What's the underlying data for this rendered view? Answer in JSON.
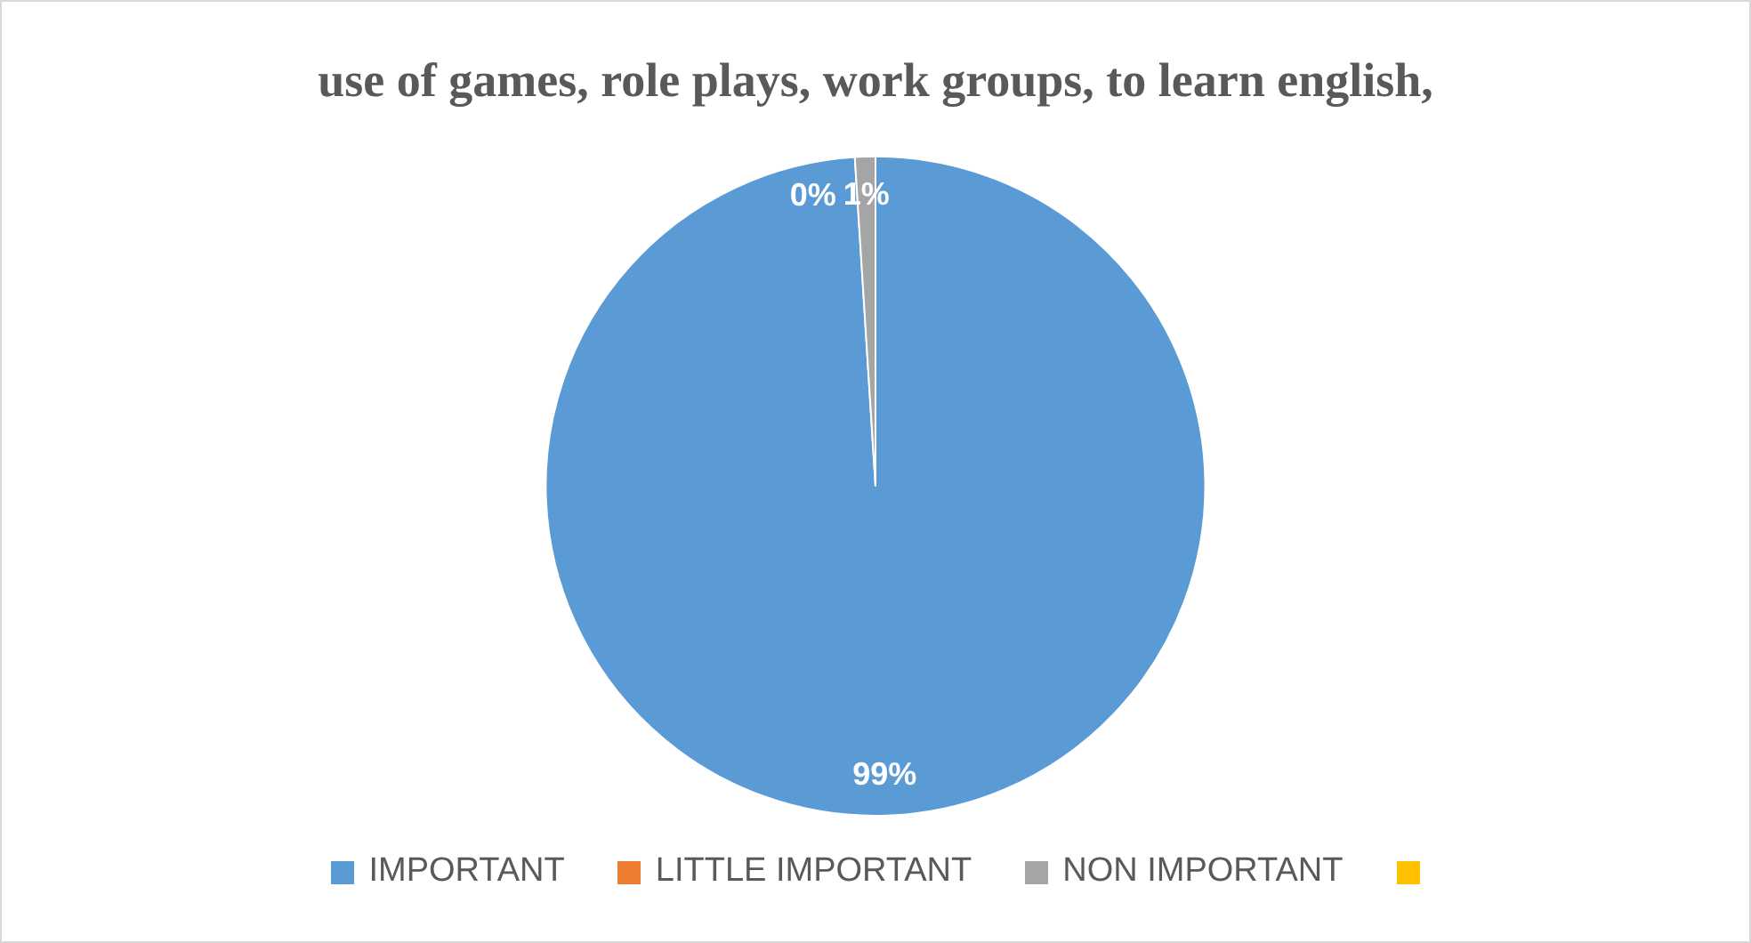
{
  "chart_data": {
    "type": "pie",
    "title": "use of games, role plays, work groups, to learn english,",
    "categories": [
      "IMPORTANT",
      "LITTLE IMPORTANT",
      "NON IMPORTANT",
      null
    ],
    "values": [
      99,
      0,
      1,
      null
    ],
    "colors": [
      "#5b9bd5",
      "#ed7d31",
      "#a5a5a5",
      "#ffc000"
    ],
    "value_labels": [
      "99%",
      "0%",
      "1%",
      null
    ],
    "legend": "bottom"
  }
}
